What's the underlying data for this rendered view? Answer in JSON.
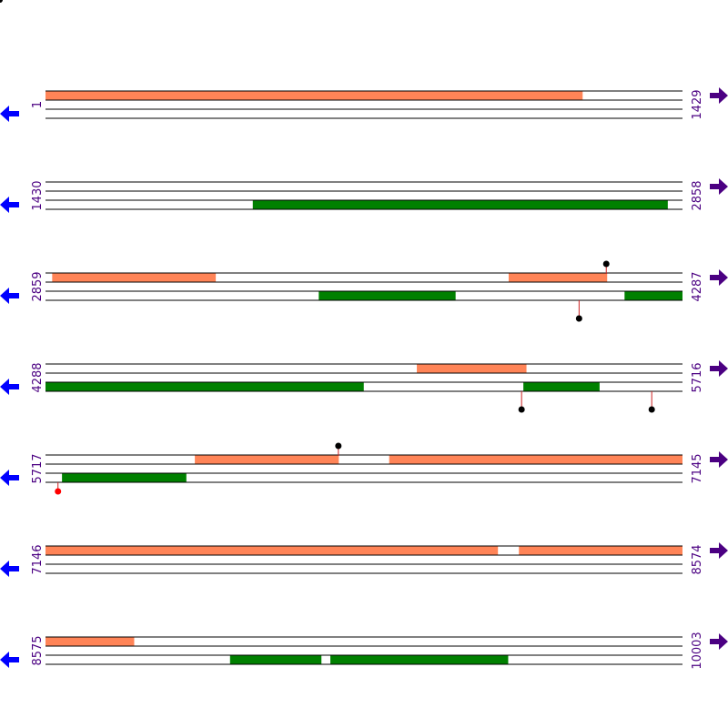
{
  "colors": {
    "forward_feature": "#ff8457",
    "reverse_feature": "#008000",
    "track_line": "#000000",
    "label": "#4b0082",
    "left_arrow": "#0000ff",
    "right_arrow": "#4b0082",
    "marker_black": "#000000",
    "marker_red": "#ff0000",
    "marker_stem": "#cc2222"
  },
  "rows": [
    {
      "start_label": "1",
      "end_label": "1429",
      "start": 1,
      "end": 1429,
      "left_arrow_icon": "left-arrow-icon",
      "right_arrow_icon": "right-arrow-icon",
      "features": [
        {
          "track": 0,
          "from": 1,
          "to": 1205,
          "strand": "forward"
        }
      ],
      "markers": []
    },
    {
      "start_label": "1430",
      "end_label": "2858",
      "start": 1430,
      "end": 2858,
      "left_arrow_icon": "left-arrow-icon",
      "right_arrow_icon": "right-arrow-icon",
      "features": [
        {
          "track": 2,
          "from": 1895,
          "to": 2825,
          "strand": "reverse"
        }
      ],
      "markers": []
    },
    {
      "start_label": "2859",
      "end_label": "4287",
      "start": 2859,
      "end": 4287,
      "left_arrow_icon": "left-arrow-icon",
      "right_arrow_icon": "right-arrow-icon",
      "features": [
        {
          "track": 0,
          "from": 2874,
          "to": 3240,
          "strand": "forward"
        },
        {
          "track": 0,
          "from": 3898,
          "to": 4118,
          "strand": "forward"
        },
        {
          "track": 2,
          "from": 3472,
          "to": 3778,
          "strand": "reverse"
        },
        {
          "track": 2,
          "from": 4158,
          "to": 4287,
          "strand": "reverse"
        }
      ],
      "markers": [
        {
          "pos": 4117,
          "side": "top",
          "color": "black"
        },
        {
          "pos": 4056,
          "side": "bottom",
          "color": "black"
        }
      ]
    },
    {
      "start_label": "4288",
      "end_label": "5716",
      "start": 4288,
      "end": 5716,
      "left_arrow_icon": "left-arrow-icon",
      "right_arrow_icon": "right-arrow-icon",
      "features": [
        {
          "track": 0,
          "from": 5121,
          "to": 5366,
          "strand": "forward"
        },
        {
          "track": 2,
          "from": 4288,
          "to": 5001,
          "strand": "reverse"
        },
        {
          "track": 2,
          "from": 5360,
          "to": 5530,
          "strand": "reverse"
        }
      ],
      "markers": [
        {
          "pos": 5356,
          "side": "bottom",
          "color": "black"
        },
        {
          "pos": 5648,
          "side": "bottom",
          "color": "black"
        }
      ]
    },
    {
      "start_label": "5717",
      "end_label": "7145",
      "start": 5717,
      "end": 7145,
      "left_arrow_icon": "left-arrow-icon",
      "right_arrow_icon": "right-arrow-icon",
      "features": [
        {
          "track": 0,
          "from": 6052,
          "to": 6374,
          "strand": "forward"
        },
        {
          "track": 0,
          "from": 6488,
          "to": 7145,
          "strand": "forward"
        },
        {
          "track": 2,
          "from": 5754,
          "to": 6032,
          "strand": "reverse"
        }
      ],
      "markers": [
        {
          "pos": 6374,
          "side": "top",
          "color": "black"
        },
        {
          "pos": 5745,
          "side": "bottom",
          "color": "red"
        }
      ]
    },
    {
      "start_label": "7146",
      "end_label": "8574",
      "start": 7146,
      "end": 8574,
      "left_arrow_icon": "left-arrow-icon",
      "right_arrow_icon": "right-arrow-icon",
      "features": [
        {
          "track": 0,
          "from": 7146,
          "to": 8160,
          "strand": "forward"
        },
        {
          "track": 0,
          "from": 8208,
          "to": 8574,
          "strand": "forward"
        }
      ],
      "markers": []
    },
    {
      "start_label": "8575",
      "end_label": "10003",
      "start": 8575,
      "end": 10003,
      "left_arrow_icon": "left-arrow-icon",
      "right_arrow_icon": "right-arrow-icon",
      "features": [
        {
          "track": 0,
          "from": 8575,
          "to": 8773,
          "strand": "forward"
        },
        {
          "track": 2,
          "from": 8989,
          "to": 9193,
          "strand": "reverse"
        },
        {
          "track": 2,
          "from": 9214,
          "to": 9612,
          "strand": "reverse"
        }
      ],
      "markers": []
    }
  ]
}
